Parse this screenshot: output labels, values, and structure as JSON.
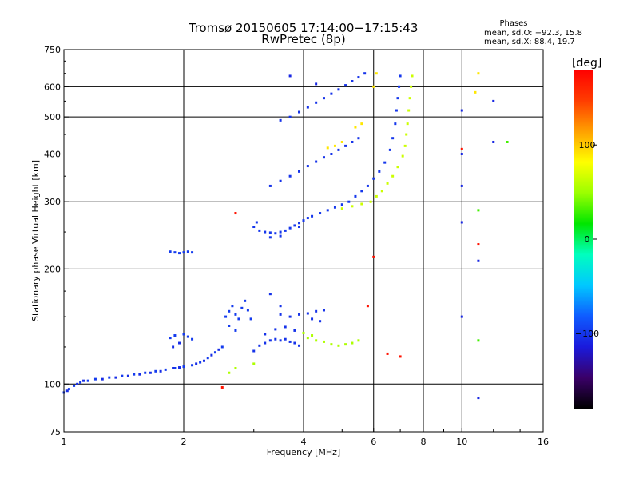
{
  "chart_data": {
    "type": "scatter",
    "title": "Tromsø 20150605 17:14:00−17:15:43",
    "subtitle": "RwPretec (8p)",
    "xlabel": "Frequency [MHz]",
    "ylabel": "Stationary phase Virtual Height [km]",
    "x_scale": "log",
    "y_scale": "log",
    "xlim": [
      1,
      16
    ],
    "ylim": [
      75,
      750
    ],
    "x_ticks": [
      1,
      2,
      4,
      6,
      8,
      10,
      16
    ],
    "x_tick_labels": [
      "1",
      "2",
      "4",
      "6",
      "8",
      "10",
      "16"
    ],
    "y_ticks": [
      75,
      100,
      200,
      300,
      400,
      500,
      600,
      750
    ],
    "y_tick_labels": [
      "75",
      "100",
      "200",
      "300",
      "400",
      "500",
      "600",
      "750"
    ],
    "grid": true,
    "stats": {
      "title": "Phases",
      "line_o": "mean, sd,O: −92.3, 15.8",
      "line_x": "mean, sd,X:  88.4, 19.7"
    },
    "colorbar": {
      "label": "[deg]",
      "ticks": [
        100,
        0,
        -100
      ],
      "tick_labels": [
        "100",
        "0",
        "−100"
      ],
      "range": [
        -180,
        180
      ],
      "colors": [
        "#000000",
        "#3a0068",
        "#1a1adc",
        "#0f5cff",
        "#00c8ff",
        "#00ffbe",
        "#00e600",
        "#9bff00",
        "#ffff00",
        "#ffa000",
        "#ff3c00",
        "#ff0000"
      ]
    },
    "series": [
      {
        "phase": -98,
        "points": [
          [
            1.0,
            95
          ],
          [
            1.03,
            97
          ],
          [
            1.06,
            99
          ],
          [
            1.1,
            101
          ],
          [
            1.15,
            102
          ],
          [
            1.2,
            103
          ],
          [
            1.3,
            104
          ],
          [
            1.4,
            105
          ],
          [
            1.5,
            106
          ],
          [
            1.6,
            107
          ],
          [
            1.7,
            108
          ],
          [
            1.8,
            109
          ],
          [
            1.9,
            110
          ],
          [
            2.0,
            111
          ],
          [
            2.1,
            112
          ],
          [
            2.2,
            114
          ],
          [
            2.3,
            117
          ],
          [
            2.4,
            121
          ],
          [
            2.5,
            125
          ],
          [
            1.85,
            132
          ],
          [
            1.9,
            134
          ],
          [
            2.0,
            135
          ],
          [
            2.05,
            133
          ],
          [
            2.1,
            131
          ],
          [
            1.85,
            222
          ],
          [
            1.9,
            221
          ],
          [
            1.95,
            220
          ],
          [
            2.0,
            221
          ],
          [
            2.05,
            222
          ],
          [
            2.1,
            221
          ]
        ]
      },
      {
        "phase": -105,
        "points": [
          [
            1.02,
            96
          ],
          [
            1.08,
            100
          ],
          [
            1.12,
            102
          ],
          [
            1.25,
            103
          ],
          [
            1.35,
            104
          ],
          [
            1.45,
            105
          ],
          [
            1.55,
            106
          ],
          [
            1.65,
            107
          ],
          [
            1.75,
            108
          ],
          [
            1.88,
            110
          ],
          [
            1.95,
            110.5
          ],
          [
            2.15,
            113
          ],
          [
            2.25,
            115
          ],
          [
            2.35,
            119
          ],
          [
            2.45,
            123
          ],
          [
            1.88,
            125
          ],
          [
            1.95,
            128
          ]
        ]
      },
      {
        "phase": -102,
        "points": [
          [
            3.0,
            122
          ],
          [
            3.1,
            126
          ],
          [
            3.2,
            128
          ],
          [
            3.3,
            130
          ],
          [
            3.4,
            131
          ],
          [
            3.5,
            130
          ],
          [
            3.6,
            131
          ],
          [
            3.7,
            129
          ],
          [
            3.8,
            128
          ],
          [
            3.9,
            126
          ],
          [
            3.2,
            135
          ],
          [
            3.4,
            139
          ],
          [
            3.6,
            141
          ],
          [
            3.8,
            138
          ],
          [
            3.5,
            152
          ],
          [
            3.7,
            150
          ],
          [
            3.9,
            152
          ],
          [
            4.1,
            153
          ],
          [
            4.3,
            155
          ],
          [
            4.5,
            156
          ],
          [
            4.2,
            148
          ],
          [
            4.4,
            146
          ],
          [
            3.3,
            172
          ],
          [
            3.5,
            160
          ]
        ]
      },
      {
        "phase": -98,
        "points": [
          [
            2.55,
            150
          ],
          [
            2.6,
            155
          ],
          [
            2.65,
            160
          ],
          [
            2.7,
            152
          ],
          [
            2.75,
            148
          ],
          [
            2.8,
            158
          ],
          [
            2.85,
            165
          ],
          [
            2.9,
            156
          ],
          [
            2.95,
            148
          ],
          [
            2.6,
            142
          ],
          [
            2.7,
            138
          ]
        ]
      },
      {
        "phase": 55,
        "points": [
          [
            4.1,
            132
          ],
          [
            4.3,
            130
          ],
          [
            4.5,
            129
          ],
          [
            4.7,
            127
          ],
          [
            4.9,
            126
          ],
          [
            5.1,
            127
          ],
          [
            5.3,
            128
          ],
          [
            5.5,
            130
          ],
          [
            4.0,
            136
          ],
          [
            4.2,
            134
          ],
          [
            2.7,
            110
          ],
          [
            2.6,
            107
          ],
          [
            3.0,
            113
          ]
        ]
      },
      {
        "phase": -100,
        "points": [
          [
            3.0,
            258
          ],
          [
            3.1,
            252
          ],
          [
            3.2,
            250
          ],
          [
            3.3,
            249
          ],
          [
            3.4,
            248
          ],
          [
            3.5,
            250
          ],
          [
            3.6,
            252
          ],
          [
            3.7,
            256
          ],
          [
            3.8,
            260
          ],
          [
            3.9,
            264
          ],
          [
            4.0,
            268
          ],
          [
            4.2,
            275
          ],
          [
            4.4,
            280
          ],
          [
            4.6,
            285
          ],
          [
            4.8,
            290
          ],
          [
            5.0,
            295
          ],
          [
            5.2,
            300
          ],
          [
            5.4,
            310
          ],
          [
            5.6,
            320
          ],
          [
            5.8,
            330
          ],
          [
            6.0,
            345
          ],
          [
            6.2,
            360
          ],
          [
            6.4,
            380
          ],
          [
            6.6,
            410
          ],
          [
            6.7,
            440
          ],
          [
            6.8,
            480
          ],
          [
            6.85,
            520
          ],
          [
            6.9,
            560
          ],
          [
            6.95,
            600
          ],
          [
            7.0,
            640
          ],
          [
            3.05,
            265
          ],
          [
            3.3,
            242
          ],
          [
            3.5,
            244
          ],
          [
            3.9,
            258
          ],
          [
            4.1,
            272
          ]
        ]
      },
      {
        "phase": 65,
        "points": [
          [
            5.0,
            288
          ],
          [
            5.3,
            292
          ],
          [
            5.6,
            296
          ],
          [
            5.9,
            300
          ],
          [
            6.1,
            310
          ],
          [
            6.3,
            320
          ],
          [
            6.5,
            335
          ],
          [
            6.7,
            350
          ],
          [
            6.9,
            370
          ],
          [
            7.1,
            395
          ],
          [
            7.2,
            420
          ],
          [
            7.25,
            450
          ],
          [
            7.3,
            480
          ],
          [
            7.35,
            520
          ],
          [
            7.4,
            560
          ],
          [
            7.45,
            600
          ],
          [
            7.5,
            640
          ]
        ]
      },
      {
        "phase": -102,
        "points": [
          [
            3.3,
            330
          ],
          [
            3.5,
            340
          ],
          [
            3.7,
            350
          ],
          [
            3.9,
            360
          ],
          [
            4.1,
            372
          ],
          [
            4.3,
            382
          ],
          [
            4.5,
            392
          ],
          [
            4.7,
            400
          ],
          [
            4.9,
            410
          ],
          [
            5.1,
            420
          ],
          [
            5.3,
            430
          ],
          [
            5.5,
            440
          ],
          [
            3.5,
            490
          ],
          [
            3.7,
            500
          ],
          [
            3.9,
            515
          ],
          [
            4.1,
            530
          ],
          [
            4.3,
            545
          ],
          [
            4.5,
            560
          ],
          [
            4.7,
            575
          ],
          [
            4.9,
            590
          ],
          [
            5.1,
            605
          ],
          [
            5.3,
            620
          ],
          [
            5.5,
            635
          ],
          [
            5.7,
            650
          ]
        ]
      },
      {
        "phase": 90,
        "points": [
          [
            4.6,
            415
          ],
          [
            4.8,
            420
          ],
          [
            5.0,
            430
          ],
          [
            5.4,
            470
          ],
          [
            5.6,
            480
          ],
          [
            6.0,
            600
          ],
          [
            6.1,
            650
          ],
          [
            11.0,
            650
          ],
          [
            10.8,
            580
          ]
        ]
      },
      {
        "phase": -108,
        "points": [
          [
            3.7,
            640
          ],
          [
            4.3,
            610
          ],
          [
            10.0,
            520
          ],
          [
            10.0,
            400
          ],
          [
            10.0,
            330
          ],
          [
            10.0,
            265
          ],
          [
            10.0,
            150
          ],
          [
            11.0,
            210
          ],
          [
            11.0,
            92
          ],
          [
            12.0,
            550
          ],
          [
            12.0,
            430
          ]
        ]
      },
      {
        "phase": 30,
        "points": [
          [
            11.0,
            285
          ],
          [
            11.0,
            130
          ],
          [
            13.0,
            430
          ]
        ]
      },
      {
        "phase": 170,
        "points": [
          [
            2.5,
            98
          ],
          [
            2.7,
            280
          ],
          [
            6.0,
            215
          ],
          [
            6.5,
            120
          ],
          [
            7.0,
            118
          ],
          [
            10.0,
            412
          ],
          [
            11.0,
            232
          ],
          [
            5.8,
            160
          ]
        ]
      }
    ]
  }
}
